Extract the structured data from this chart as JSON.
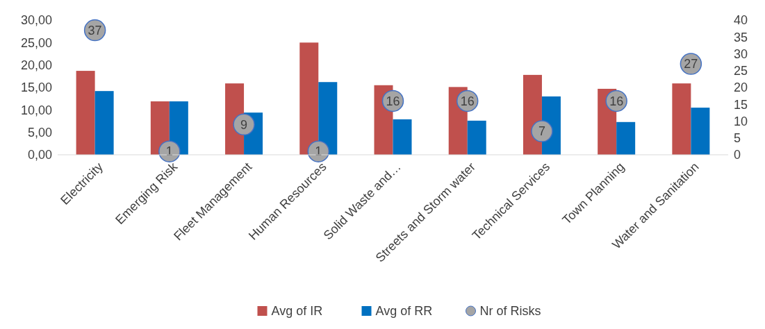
{
  "chart_data": {
    "type": "bar",
    "categories": [
      "Electricity",
      "Emerging Risk",
      "Fleet Management",
      "Human Resources",
      "Solid Waste and…",
      "Streets and Storm water",
      "Technical Services",
      "Town Planning",
      "Water and Sanitation"
    ],
    "series": [
      {
        "name": "Avg of IR",
        "color": "#c0504d",
        "values": [
          18.7,
          11.9,
          15.9,
          25.0,
          15.5,
          15.1,
          17.8,
          14.7,
          15.9
        ]
      },
      {
        "name": "Avg of RR",
        "color": "#0070c0",
        "values": [
          14.2,
          11.9,
          9.4,
          16.2,
          7.9,
          7.6,
          13.0,
          7.3,
          10.5
        ]
      },
      {
        "name": "Nr of Risks",
        "type": "scatter",
        "axis": "y2",
        "color": "#a5a5a5",
        "values": [
          37,
          1,
          9,
          1,
          16,
          16,
          7,
          16,
          27
        ],
        "value_labels": [
          "37",
          "1",
          "9",
          "1",
          "16",
          "16",
          "7",
          "16",
          "27"
        ]
      }
    ],
    "ylim": [
      0,
      30
    ],
    "yticks": [
      {
        "value": 0,
        "label": "0,00"
      },
      {
        "value": 5,
        "label": "5,00"
      },
      {
        "value": 10,
        "label": "10,00"
      },
      {
        "value": 15,
        "label": "15,00"
      },
      {
        "value": 20,
        "label": "20,00"
      },
      {
        "value": 25,
        "label": "25,00"
      },
      {
        "value": 30,
        "label": "30,00"
      }
    ],
    "y2lim": [
      0,
      40
    ],
    "y2ticks": [
      0,
      5,
      10,
      15,
      20,
      25,
      30,
      35,
      40
    ],
    "marker": "circle",
    "grid": false,
    "legend": "bottom"
  }
}
